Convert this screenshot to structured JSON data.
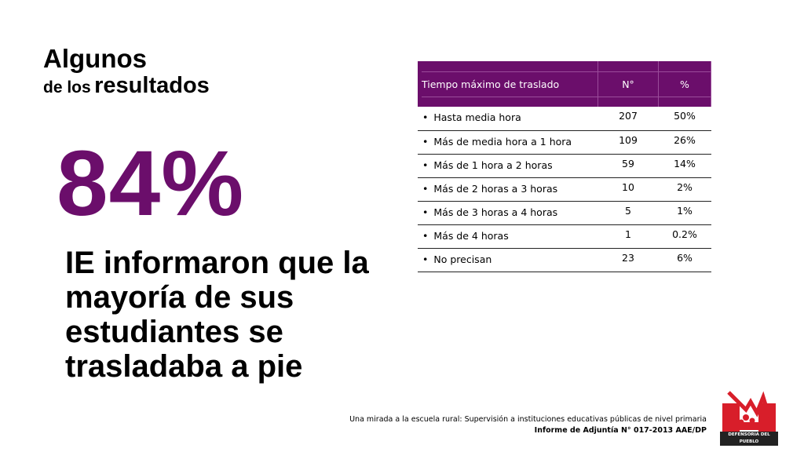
{
  "heading": {
    "line1": "Algunos",
    "line2_prefix": "de los",
    "line2_main": "resultados"
  },
  "highlight": {
    "percent": "84%",
    "statement": "IE informaron que la mayoría de sus estudiantes se trasladaba a pie"
  },
  "table": {
    "headers": [
      "Tiempo máximo de traslado",
      "N°",
      "%"
    ],
    "rows": [
      {
        "label": "Hasta media hora",
        "n": "207",
        "pct": "50%"
      },
      {
        "label": "Más de media hora a 1 hora",
        "n": "109",
        "pct": "26%"
      },
      {
        "label": "Más de 1 hora a 2 horas",
        "n": "59",
        "pct": "14%"
      },
      {
        "label": "Más de 2 horas a 3 horas",
        "n": "10",
        "pct": "2%"
      },
      {
        "label": "Más de 3 horas a 4 horas",
        "n": "5",
        "pct": "1%"
      },
      {
        "label": "Más de 4 horas",
        "n": "1",
        "pct": "0.2%"
      },
      {
        "label": "No precisan",
        "n": "23",
        "pct": "6%"
      }
    ]
  },
  "footer": {
    "line1": "Una mirada a la escuela rural: Supervisión a instituciones educativas públicas de nivel primaria",
    "line2": "Informe de Adjuntía N° 017-2013 AAE/DP"
  },
  "logo": {
    "icon": "defensoria-logo-icon",
    "text": "DEFENSORIA DEL PUEBLO"
  },
  "colors": {
    "accent": "#6b0e6b",
    "logo_red": "#d81e2a"
  }
}
